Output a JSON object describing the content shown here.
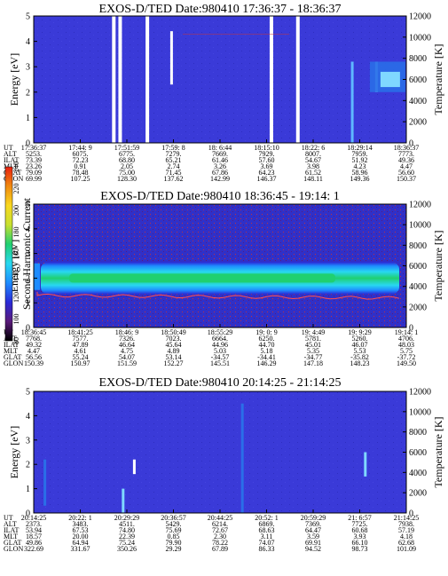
{
  "chart_data": [
    {
      "type": "heatmap",
      "title": "EXOS-D/TED   Date:980410  17:36:37 - 18:36:37",
      "ylabel": "Energy [eV]",
      "y2label": "Temperature [K]",
      "ylim": [
        0,
        5
      ],
      "y2lim": [
        0,
        12000
      ],
      "yticks": [
        "0",
        "1",
        "2",
        "3",
        "4",
        "5"
      ],
      "y2ticks": [
        "0",
        "2000",
        "4000",
        "6000",
        "8000",
        "10000",
        "12000"
      ],
      "background": "#3a3ad8",
      "gaps": [
        0.215,
        0.232,
        0.305,
        0.638,
        0.709
      ],
      "features": [
        {
          "x": 0.37,
          "y0": 2.3,
          "y1": 4.4,
          "color": "#ffffff"
        },
        {
          "x": 0.855,
          "y0": 0.0,
          "y1": 3.2,
          "color": "#5fb8ff"
        },
        {
          "x": 0.92,
          "y0": 2.0,
          "y1": 3.2,
          "color": "#7fd8ff"
        }
      ],
      "ephem_labels": [
        "UT",
        "ALT",
        "ILAT",
        "MLT",
        "GLAT",
        "GLON"
      ],
      "ephem": [
        [
          "17:36:37",
          "17:44: 9",
          "17:51:59",
          "17:59: 8",
          "18: 6:44",
          "18:15:10",
          "18:22: 6",
          "18:29:14",
          "18:36:37"
        ],
        [
          "5253.",
          "6075.",
          "6775.",
          "7279.",
          "7669.",
          "7929.",
          "8007.",
          "7959.",
          "7773."
        ],
        [
          "73.39",
          "72.23",
          "68.80",
          "65.21",
          "61.46",
          "57.60",
          "54.67",
          "51.92",
          "49.36"
        ],
        [
          "23.26",
          "0.91",
          "2.05",
          "2.74",
          "3.26",
          "3.69",
          "3.98",
          "4.23",
          "4.47"
        ],
        [
          "79.09",
          "78.48",
          "75.00",
          "71.45",
          "67.86",
          "64.23",
          "61.52",
          "58.96",
          "56.60"
        ],
        [
          "69.99",
          "107.25",
          "128.30",
          "137.62",
          "142.99",
          "146.37",
          "148.11",
          "149.36",
          "150.37"
        ]
      ]
    },
    {
      "type": "heatmap",
      "title": "EXOS-D/TED   Date:980410  18:36:45 - 19:14: 1",
      "ylabel": "Energy [eV]",
      "y2label": "Temperature [K]",
      "ylim": [
        0,
        5
      ],
      "y2lim": [
        0,
        12000
      ],
      "yticks": [
        "0",
        "1",
        "2",
        "3",
        "4",
        "5"
      ],
      "y2ticks": [
        "0",
        "2000",
        "4000",
        "6000",
        "8000",
        "10000",
        "12000"
      ],
      "background": "#3a3ad8",
      "band_center_ev": 2.0,
      "temperature_line_ev": 1.3,
      "ephem_labels": [
        "UT",
        "ALT",
        "ILAT",
        "MLT",
        "GLAT",
        "GLON"
      ],
      "ephem": [
        [
          "18:36:45",
          "18:41:25",
          "18:46: 9",
          "18:50:49",
          "18:55:29",
          "19: 0: 9",
          "19: 4:49",
          "19: 9:29",
          "19:14: 1"
        ],
        [
          "7768.",
          "7577.",
          "7326.",
          "7023.",
          "6664.",
          "6250.",
          "5781.",
          "5260.",
          "4706."
        ],
        [
          "49.32",
          "47.89",
          "46.64",
          "45.64",
          "44.96",
          "44.70",
          "45.01",
          "46.07",
          "48.03"
        ],
        [
          "4.47",
          "4.61",
          "4.75",
          "4.89",
          "5.03",
          "5.18",
          "5.35",
          "5.53",
          "5.75"
        ],
        [
          "56.56",
          "55.24",
          "54.07",
          "53.14",
          "-34.57",
          "-34.41",
          "-34.77",
          "-35.82",
          "-37.72"
        ],
        [
          "150.39",
          "150.97",
          "151.59",
          "152.27",
          "145.51",
          "146.29",
          "147.18",
          "148.23",
          "149.50"
        ]
      ]
    },
    {
      "type": "heatmap",
      "title": "EXOS-D/TED   Date:980410  20:14:25 - 21:14:25",
      "ylabel": "Energy [eV]",
      "y2label": "Temperature [K]",
      "ylim": [
        0,
        5
      ],
      "y2lim": [
        0,
        12000
      ],
      "yticks": [
        "0",
        "1",
        "2",
        "3",
        "4",
        "5"
      ],
      "y2ticks": [
        "0",
        "2000",
        "4000",
        "6000",
        "8000",
        "10000",
        "12000"
      ],
      "background": "#3a3ad8",
      "features": [
        {
          "x": 0.03,
          "y0": 0.3,
          "y1": 2.2,
          "color": "#2a6ee8"
        },
        {
          "x": 0.24,
          "y0": 0.0,
          "y1": 1.0,
          "color": "#7fd8ff"
        },
        {
          "x": 0.27,
          "y0": 1.6,
          "y1": 2.2,
          "color": "#ffffff"
        },
        {
          "x": 0.56,
          "y0": 0.0,
          "y1": 4.5,
          "color": "#2a6ee8"
        },
        {
          "x": 0.89,
          "y0": 1.5,
          "y1": 2.5,
          "color": "#7fd8ff"
        }
      ],
      "ephem_labels": [
        "UT",
        "ALT",
        "ILAT",
        "MLT",
        "GLAT",
        "GLON"
      ],
      "ephem": [
        [
          "20:14:25",
          "20:22: 1",
          "20:29:29",
          "20:36:57",
          "20:44:25",
          "20:52: 1",
          "20:59:29",
          "21: 6:57",
          "21:14:25"
        ],
        [
          "2373.",
          "3483.",
          "4511.",
          "5429.",
          "6214.",
          "6869.",
          "7369.",
          "7725.",
          "7938."
        ],
        [
          "53.94",
          "67.53",
          "74.80",
          "75.69",
          "72.67",
          "68.63",
          "64.47",
          "60.68",
          "57.19"
        ],
        [
          "18.57",
          "20.00",
          "22.39",
          "0.85",
          "2.30",
          "3.11",
          "3.59",
          "3.93",
          "4.18"
        ],
        [
          "49.86",
          "64.94",
          "75.24",
          "79.90",
          "78.22",
          "74.07",
          "69.91",
          "66.10",
          "62.68"
        ],
        [
          "322.69",
          "331.67",
          "350.26",
          "29.29",
          "67.89",
          "86.33",
          "94.52",
          "98.73",
          "101.09"
        ]
      ]
    }
  ],
  "colorbar": {
    "label": "Second Harmonic Current",
    "ticks": [
      "80",
      "100",
      "120",
      "140",
      "160",
      "180",
      "200",
      "220",
      "240"
    ],
    "colors": [
      "#000000",
      "#5a1a7a",
      "#2a2ad8",
      "#1e8cff",
      "#28d8f0",
      "#20d070",
      "#c8e030",
      "#f8d820",
      "#f08a10",
      "#e82010"
    ]
  }
}
